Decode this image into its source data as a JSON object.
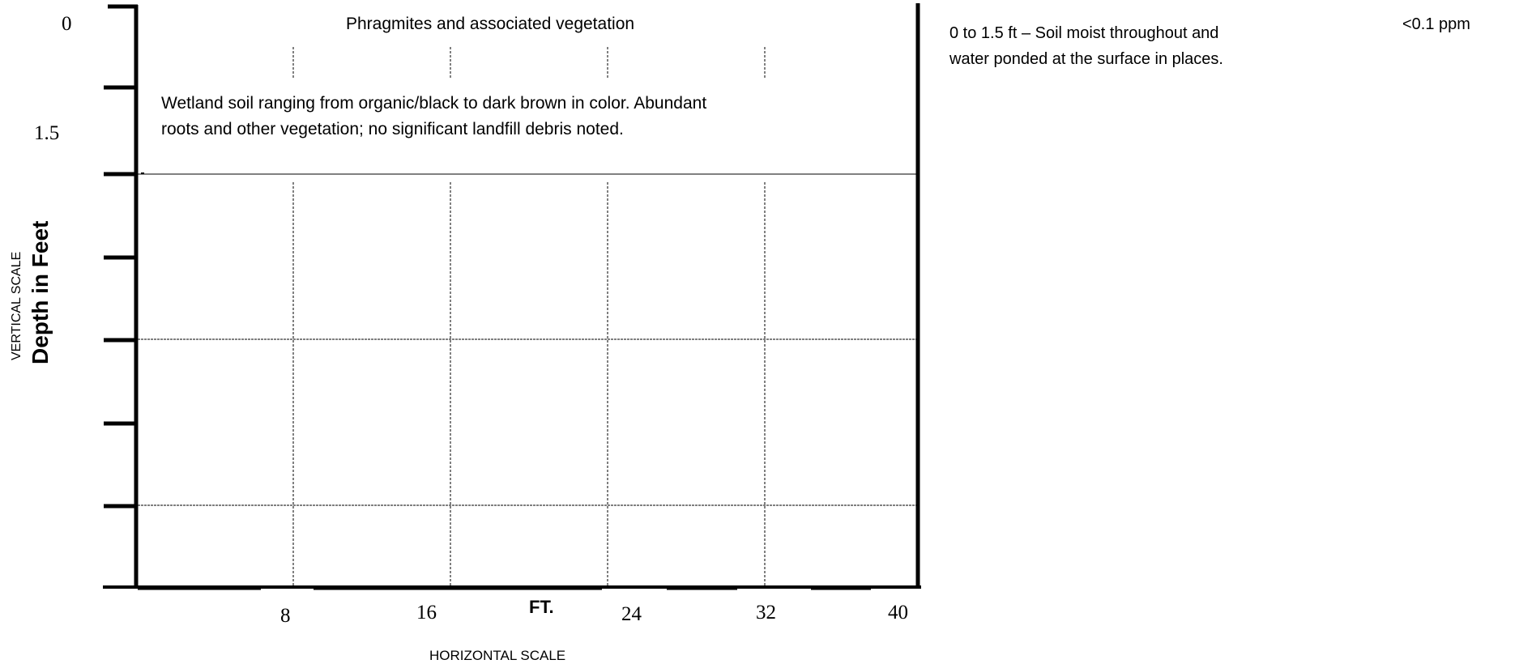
{
  "vertical_scale": {
    "label_small": "VERTICAL SCALE",
    "label_large": "Depth in Feet",
    "tick_labels": [
      "0",
      "1.5"
    ]
  },
  "horizontal_scale": {
    "label": "HORIZONTAL SCALE",
    "unit": "FT.",
    "tick_labels": [
      "8",
      "16",
      "24",
      "32",
      "40"
    ]
  },
  "log_section": {
    "surface_cover": "Phragmites and associated vegetation",
    "layer_description_line1": "Wetland soil ranging from organic/black to dark brown in color.  Abundant",
    "layer_description_line2": "roots and other vegetation; no significant landfill debris noted."
  },
  "notes": {
    "observation_line1": "0 to 1.5 ft – Soil moist throughout and",
    "observation_line2": "water ponded at the surface in places.",
    "reading": "<0.1 ppm"
  }
}
